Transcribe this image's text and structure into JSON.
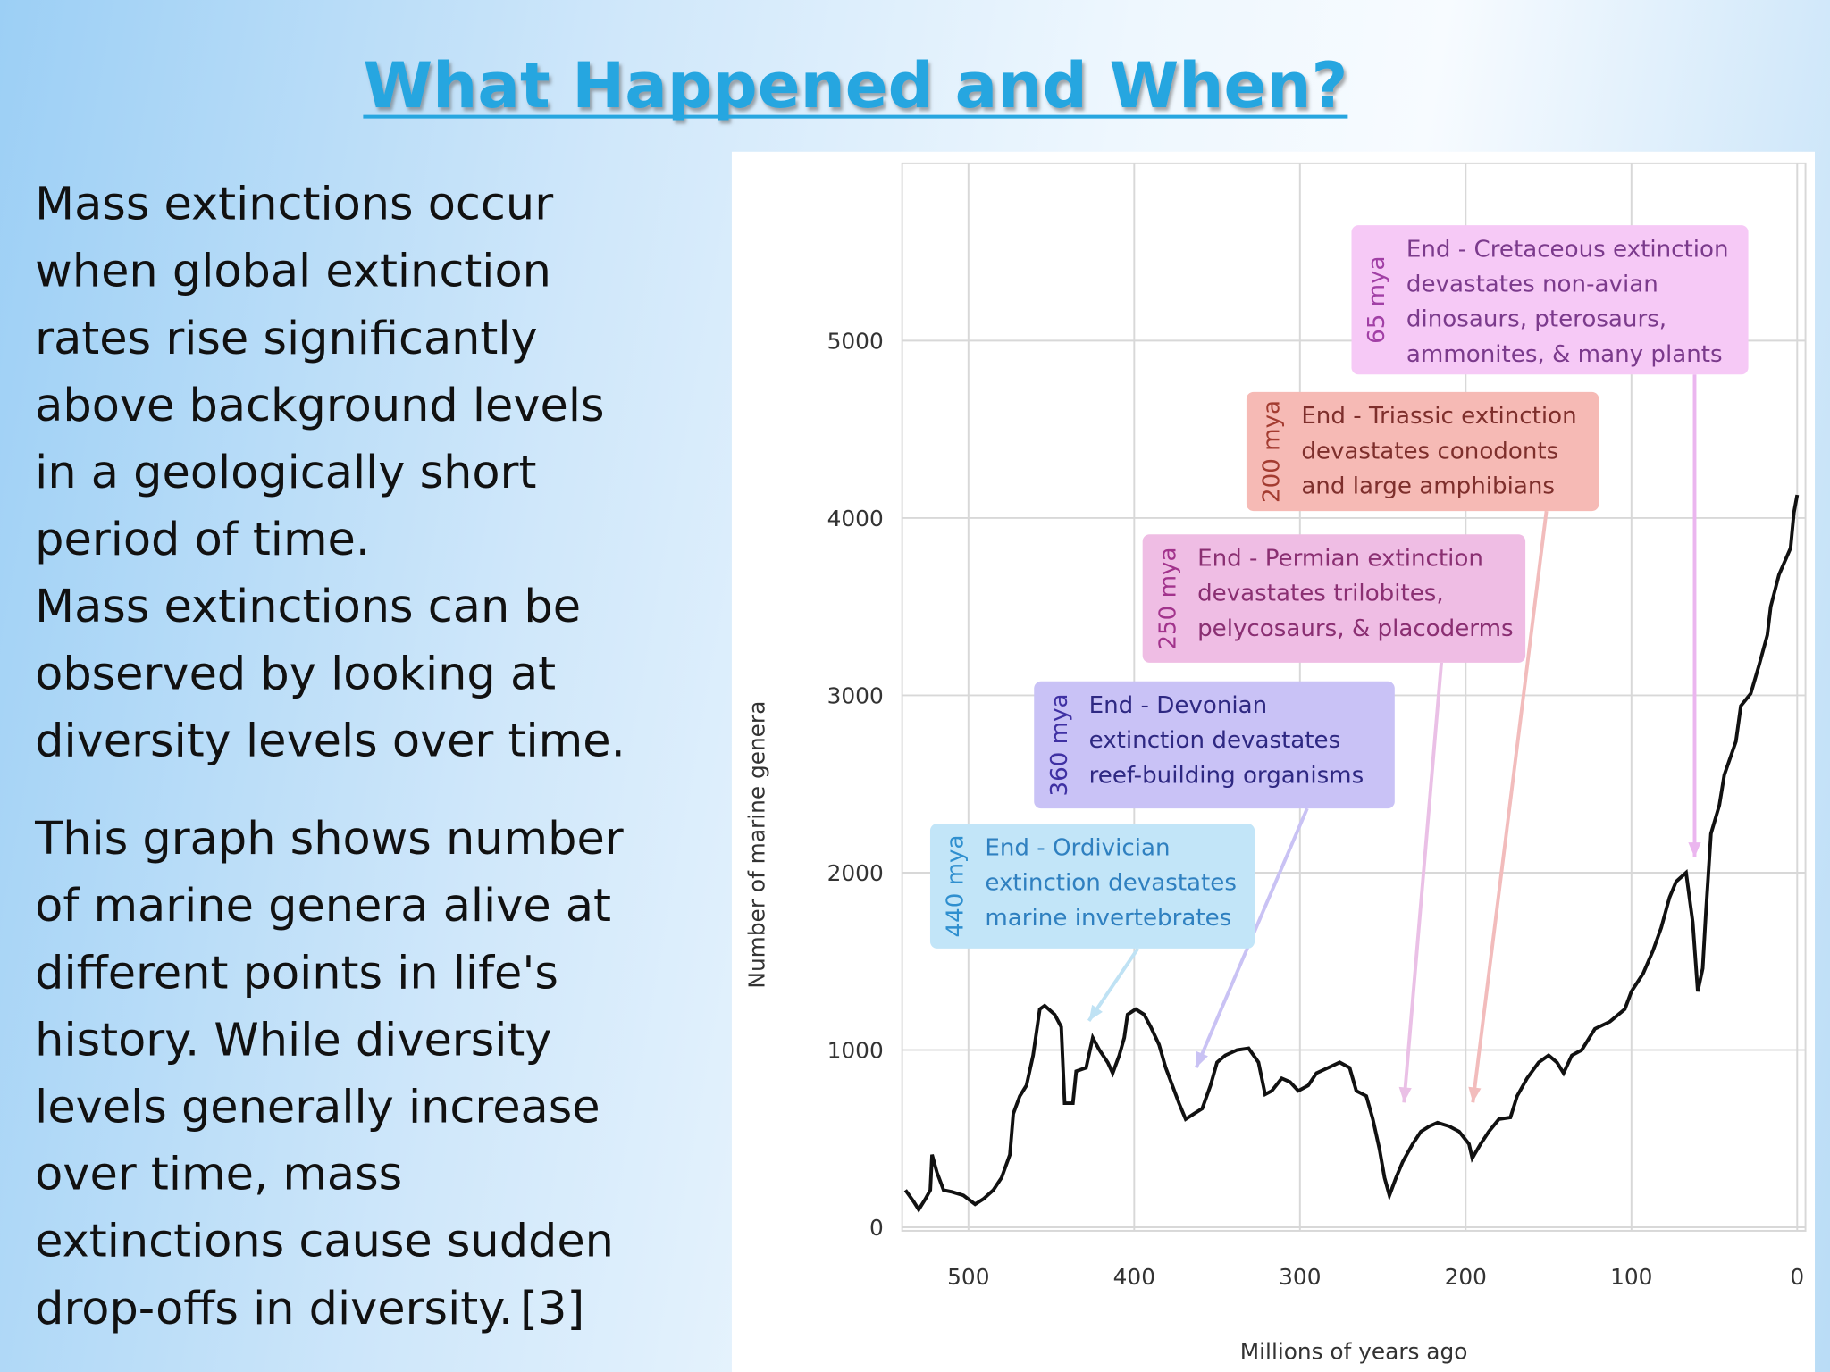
{
  "header": {
    "title": "What Happened and When?"
  },
  "body": {
    "paragraphs": [
      [
        "Mass extinctions occur",
        "when global extinction",
        "rates rise significantly",
        "above background levels",
        "in a geologically short",
        "period of time.",
        "Mass extinctions can be",
        "observed by looking at",
        "diversity levels over time."
      ],
      [
        "This graph shows number",
        "of marine genera alive at",
        "different points in life's",
        "history. While diversity",
        "levels generally increase",
        "over time, mass",
        "extinctions cause sudden",
        "drop-offs in diversity."
      ]
    ],
    "citation": "[3]"
  },
  "chart_data": {
    "type": "line",
    "color": "#111111",
    "x_label": "Millions of years ago",
    "y_label": "Number of marine genera",
    "x": [
      538,
      533,
      530,
      526,
      523,
      522,
      519,
      515,
      510,
      503,
      496,
      491,
      485,
      480,
      475,
      473,
      469,
      465,
      461,
      457,
      454,
      448,
      444,
      442,
      437,
      435,
      429,
      425,
      421,
      416,
      413,
      409,
      406,
      404,
      399,
      394,
      390,
      385,
      381,
      377,
      373,
      369,
      364,
      359,
      354,
      350,
      345,
      338,
      331,
      325,
      321,
      317,
      311,
      306,
      301,
      295,
      290,
      283,
      276,
      270,
      266,
      260,
      256,
      252,
      249,
      246,
      242,
      238,
      232,
      227,
      222,
      217,
      210,
      204,
      198,
      196,
      191,
      186,
      180,
      173,
      169,
      163,
      156,
      150,
      145,
      141,
      136,
      130,
      122,
      113,
      104,
      100,
      93,
      87,
      82,
      77,
      73,
      67,
      63,
      60,
      57,
      55,
      52,
      47,
      44,
      37,
      34,
      28,
      23,
      18,
      16,
      11,
      4,
      2,
      0
    ],
    "values": [
      210,
      145,
      100,
      160,
      210,
      410,
      310,
      210,
      200,
      180,
      130,
      160,
      210,
      280,
      410,
      640,
      740,
      800,
      970,
      1230,
      1250,
      1200,
      1130,
      700,
      700,
      880,
      900,
      1070,
      1000,
      930,
      870,
      970,
      1070,
      1200,
      1230,
      1200,
      1130,
      1030,
      900,
      800,
      700,
      610,
      640,
      670,
      800,
      930,
      970,
      1000,
      1010,
      930,
      750,
      770,
      840,
      820,
      770,
      800,
      870,
      900,
      930,
      900,
      770,
      740,
      610,
      440,
      280,
      180,
      280,
      370,
      470,
      540,
      570,
      590,
      570,
      540,
      470,
      390,
      470,
      540,
      610,
      620,
      740,
      840,
      930,
      970,
      930,
      870,
      970,
      1000,
      1120,
      1160,
      1230,
      1330,
      1430,
      1560,
      1690,
      1860,
      1950,
      2000,
      1720,
      1330,
      1460,
      1790,
      2220,
      2380,
      2550,
      2740,
      2940,
      3010,
      3170,
      3340,
      3500,
      3680,
      3830,
      4030,
      4130
    ],
    "xlim": [
      540,
      -5
    ],
    "ylim": [
      0,
      6000
    ],
    "xticks": [
      500,
      400,
      300,
      200,
      100,
      0
    ],
    "yticks": [
      0,
      1000,
      2000,
      3000,
      4000,
      5000
    ],
    "grid": true,
    "annotations": [
      {
        "label": "65 mya",
        "lines": [
          "End - Cretaceous extinction",
          "devastates non-avian",
          "dinosaurs, pterosaurs,",
          "ammonites, & many plants"
        ]
      },
      {
        "label": "200 mya",
        "lines": [
          "End - Triassic extinction",
          "devastates conodonts",
          "and large amphibians"
        ]
      },
      {
        "label": "250 mya",
        "lines": [
          "End - Permian extinction",
          "devastates trilobites,",
          "pelycosaurs, & placoderms"
        ]
      },
      {
        "label": "360 mya",
        "lines": [
          "End - Devonian",
          "extinction devastates",
          "reef-building organisms"
        ]
      },
      {
        "label": "440 mya",
        "lines": [
          "End - Ordivician",
          "extinction devastates",
          "marine invertebrates"
        ]
      }
    ]
  }
}
